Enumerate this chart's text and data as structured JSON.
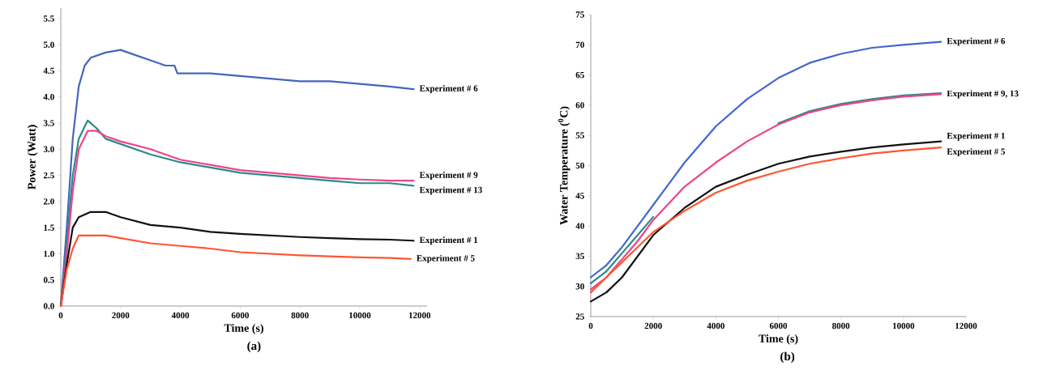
{
  "chart_data": [
    {
      "type": "line",
      "xlabel": "Time (s)",
      "ylabel": "Power (Watt)",
      "xlim": [
        0,
        12250
      ],
      "ylim": [
        0,
        5.7
      ],
      "xticks": [
        0,
        2000,
        4000,
        6000,
        8000,
        10000,
        12000
      ],
      "yticks": [
        {
          "value": 0,
          "label": "0.0"
        },
        {
          "value": 0.5,
          "label": "0.5"
        },
        {
          "value": 1,
          "label": "1.0"
        },
        {
          "value": 1.5,
          "label": "1.5"
        },
        {
          "value": 2,
          "label": "2.0"
        },
        {
          "value": 2.5,
          "label": "2.5"
        },
        {
          "value": 3,
          "label": "3.0"
        },
        {
          "value": 3.5,
          "label": "3.5"
        },
        {
          "value": 4,
          "label": "4.0"
        },
        {
          "value": 4.5,
          "label": "4.5"
        },
        {
          "value": 5,
          "label": "5.0"
        },
        {
          "value": 5.5,
          "label": "5.5"
        }
      ],
      "annotations": [
        "(a)"
      ],
      "series": [
        {
          "name": "Experiment # 6",
          "color": "#4466bb",
          "x": [
            0,
            200,
            400,
            600,
            800,
            1000,
            1500,
            2000,
            2500,
            3000,
            3500,
            3800,
            3900,
            4500,
            5000,
            6000,
            7000,
            8000,
            9000,
            10000,
            11000,
            11800
          ],
          "values": [
            0,
            1.5,
            3.2,
            4.2,
            4.6,
            4.75,
            4.85,
            4.9,
            4.8,
            4.7,
            4.6,
            4.6,
            4.45,
            4.45,
            4.45,
            4.4,
            4.35,
            4.3,
            4.3,
            4.25,
            4.2,
            4.15
          ]
        },
        {
          "name": "Experiment # 13",
          "color": "#2a8a8a",
          "x": [
            0,
            200,
            400,
            600,
            900,
            1200,
            1500,
            2000,
            3000,
            4000,
            5000,
            6000,
            7000,
            8000,
            9000,
            10000,
            11000,
            11800
          ],
          "values": [
            0,
            1.2,
            2.5,
            3.2,
            3.55,
            3.4,
            3.2,
            3.1,
            2.9,
            2.75,
            2.65,
            2.55,
            2.5,
            2.45,
            2.4,
            2.35,
            2.35,
            2.3
          ]
        },
        {
          "name": "Experiment # 9",
          "color": "#ee4488",
          "x": [
            0,
            200,
            400,
            600,
            900,
            1200,
            1500,
            2000,
            3000,
            4000,
            5000,
            6000,
            7000,
            8000,
            9000,
            10000,
            11000,
            11800
          ],
          "values": [
            0,
            1.0,
            2.2,
            3.0,
            3.35,
            3.35,
            3.25,
            3.15,
            3.0,
            2.8,
            2.7,
            2.6,
            2.55,
            2.5,
            2.45,
            2.42,
            2.4,
            2.4
          ]
        },
        {
          "name": "Experiment # 1",
          "color": "#111111",
          "x": [
            0,
            200,
            400,
            600,
            1000,
            1500,
            2000,
            3000,
            4000,
            5000,
            6000,
            7000,
            8000,
            9000,
            10000,
            11000,
            11800
          ],
          "values": [
            0,
            0.8,
            1.5,
            1.7,
            1.8,
            1.8,
            1.7,
            1.55,
            1.5,
            1.42,
            1.38,
            1.35,
            1.32,
            1.3,
            1.28,
            1.27,
            1.25
          ]
        },
        {
          "name": "Experiment # 5",
          "color": "#ff5533",
          "x": [
            0,
            200,
            400,
            600,
            1000,
            1500,
            2000,
            3000,
            4000,
            5000,
            6000,
            7000,
            8000,
            9000,
            10000,
            11000,
            11700
          ],
          "values": [
            0,
            0.7,
            1.1,
            1.35,
            1.35,
            1.35,
            1.3,
            1.2,
            1.15,
            1.1,
            1.03,
            1.0,
            0.97,
            0.95,
            0.93,
            0.92,
            0.9
          ]
        }
      ]
    },
    {
      "type": "line",
      "xlabel": "Time (s)",
      "ylabel": "Water Temperature ($^{0}$C)",
      "xlim": [
        0,
        12000
      ],
      "ylim": [
        25,
        75
      ],
      "xticks": [
        0,
        2000,
        4000,
        6000,
        8000,
        10000,
        12000
      ],
      "yticks": [
        25,
        30,
        35,
        40,
        45,
        50,
        55,
        60,
        65,
        70,
        75
      ],
      "annotations": [
        "(b)"
      ],
      "series": [
        {
          "name": "Experiment # 6",
          "color": "#4466cc",
          "x": [
            0,
            500,
            1000,
            1500,
            2000,
            2500,
            3000,
            4000,
            5000,
            6000,
            7000,
            8000,
            9000,
            10000,
            11200
          ],
          "values": [
            31.5,
            33.5,
            36.5,
            40,
            43.5,
            47,
            50.5,
            56.5,
            61,
            64.5,
            67,
            68.5,
            69.5,
            70,
            70.5
          ]
        },
        {
          "color": "#2a8a8a",
          "x": [
            0,
            500,
            1000,
            1500,
            2000,
            3000,
            4000,
            5000,
            6000,
            7000,
            8000,
            9000,
            10000,
            11200
          ],
          "values": [
            30.5,
            32.5,
            35.5,
            38.5,
            41.5,
            null,
            null,
            null,
            57,
            59,
            60.2,
            61,
            61.6,
            62
          ]
        },
        {
          "name": "Experiment # 9, 13",
          "color": "#ee4488",
          "x": [
            0,
            500,
            1000,
            1500,
            2000,
            3000,
            4000,
            5000,
            6000,
            7000,
            8000,
            9000,
            10000,
            11200
          ],
          "values": [
            29.5,
            31.5,
            34.5,
            37.5,
            41,
            46.5,
            50.5,
            54,
            56.8,
            58.8,
            60,
            60.8,
            61.4,
            61.8
          ]
        },
        {
          "name": "Experiment # 1",
          "color": "#111111",
          "x": [
            0,
            500,
            1000,
            1500,
            2000,
            3000,
            4000,
            5000,
            6000,
            7000,
            8000,
            9000,
            10000,
            11200
          ],
          "values": [
            27.5,
            29,
            31.5,
            35,
            38.5,
            43,
            46.5,
            48.5,
            50.3,
            51.5,
            52.3,
            53,
            53.5,
            54
          ]
        },
        {
          "name": "Experiment # 5",
          "color": "#ff5533",
          "x": [
            0,
            500,
            1000,
            1500,
            2000,
            3000,
            4000,
            5000,
            6000,
            7000,
            8000,
            9000,
            10000,
            11200
          ],
          "values": [
            29,
            31.5,
            34,
            36.5,
            39,
            42.5,
            45.5,
            47.5,
            49,
            50.3,
            51.2,
            52,
            52.5,
            53
          ]
        }
      ]
    }
  ]
}
